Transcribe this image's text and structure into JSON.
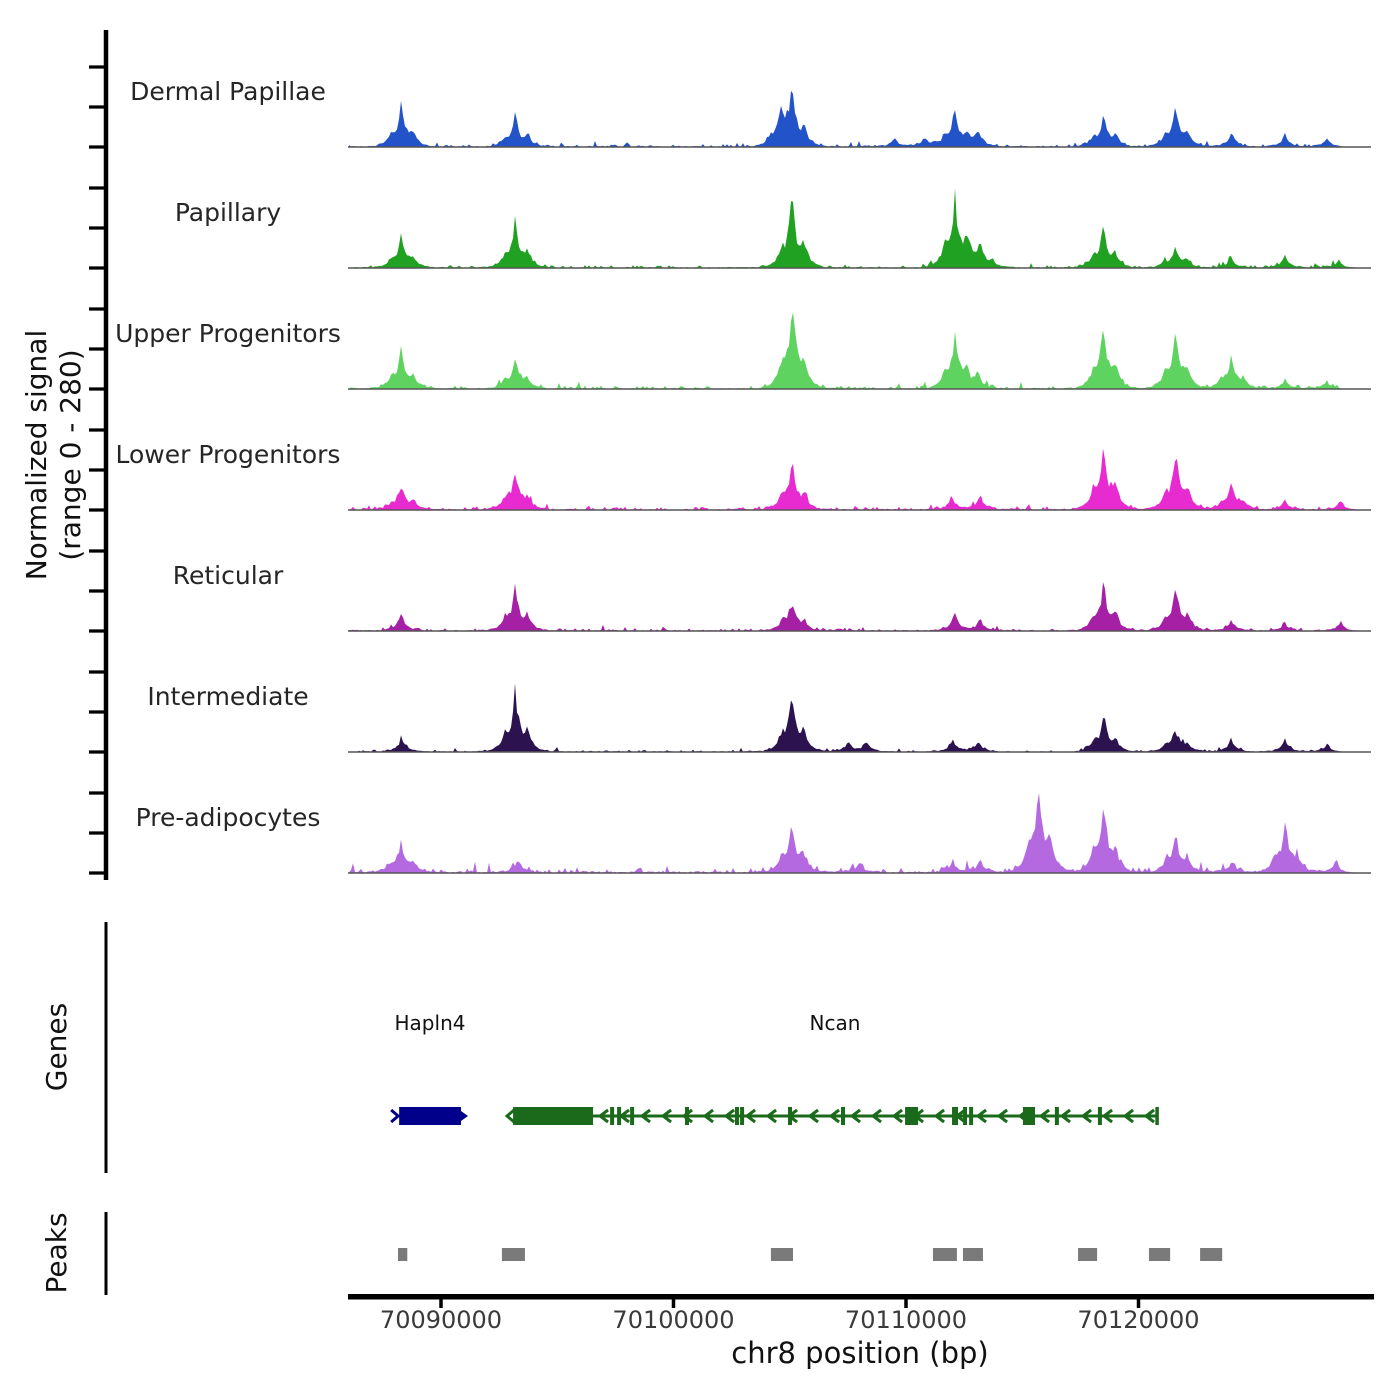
{
  "figure": {
    "ylabel_line1": "Normalized signal",
    "ylabel_line2": "(range 0 - 280)",
    "genes_section_label": "Genes",
    "peaks_section_label": "Peaks",
    "xlabel": "chr8 position (bp)"
  },
  "chart_data": {
    "type": "area",
    "title": "",
    "x_axis": {
      "label": "chr8 position (bp)",
      "chromosome": "chr8",
      "unit": "bp",
      "xlim": [
        70086000,
        70130000
      ],
      "ticks": [
        70090000,
        70100000,
        70110000,
        70120000
      ],
      "tick_labels": [
        "70090000",
        "70100000",
        "70110000",
        "70120000"
      ]
    },
    "y_axis": {
      "label": "Normalized signal (range 0 - 280)",
      "range_per_track": [
        0,
        280
      ],
      "ticks_per_track": [
        0,
        140,
        280
      ]
    },
    "legend_position": "left-track-labels",
    "grid": false,
    "tracks": [
      {
        "label": "Dermal Papillae",
        "color": "#2353C8",
        "noise": 6,
        "peaks": [
          [
            70088300,
            125
          ],
          [
            70093200,
            88
          ],
          [
            70104600,
            85
          ],
          [
            70105100,
            155
          ],
          [
            70109500,
            28
          ],
          [
            70110800,
            30
          ],
          [
            70112100,
            112
          ],
          [
            70113100,
            50
          ],
          [
            70118500,
            95
          ],
          [
            70121600,
            125
          ],
          [
            70124000,
            45
          ],
          [
            70126300,
            38
          ],
          [
            70128100,
            28
          ]
        ]
      },
      {
        "label": "Papillary",
        "color": "#21A121",
        "noise": 6,
        "peaks": [
          [
            70088300,
            95
          ],
          [
            70093200,
            147
          ],
          [
            70105100,
            210
          ],
          [
            70112100,
            220
          ],
          [
            70113200,
            70
          ],
          [
            70118500,
            123
          ],
          [
            70121600,
            66
          ],
          [
            70124000,
            32
          ],
          [
            70126300,
            40
          ],
          [
            70128600,
            25
          ]
        ]
      },
      {
        "label": "Upper Progenitors",
        "color": "#5FD35F",
        "noise": 7,
        "peaks": [
          [
            70088300,
            120
          ],
          [
            70093200,
            96
          ],
          [
            70105100,
            278
          ],
          [
            70112100,
            160
          ],
          [
            70113100,
            45
          ],
          [
            70118500,
            196
          ],
          [
            70121600,
            175
          ],
          [
            70124000,
            96
          ],
          [
            70126300,
            30
          ],
          [
            70128100,
            22
          ]
        ]
      },
      {
        "label": "Lower Progenitors",
        "color": "#E82BD0",
        "noise": 7,
        "peaks": [
          [
            70088300,
            75
          ],
          [
            70093200,
            125
          ],
          [
            70105100,
            143
          ],
          [
            70112000,
            38
          ],
          [
            70113200,
            42
          ],
          [
            70118500,
            210
          ],
          [
            70121600,
            175
          ],
          [
            70124000,
            78
          ],
          [
            70126300,
            28
          ],
          [
            70128700,
            30
          ]
        ]
      },
      {
        "label": "Reticular",
        "color": "#A520A5",
        "noise": 6,
        "peaks": [
          [
            70088300,
            55
          ],
          [
            70093200,
            133
          ],
          [
            70105100,
            93
          ],
          [
            70112100,
            52
          ],
          [
            70113200,
            35
          ],
          [
            70118500,
            140
          ],
          [
            70121600,
            133
          ],
          [
            70124000,
            32
          ],
          [
            70126300,
            25
          ],
          [
            70128700,
            28
          ]
        ]
      },
      {
        "label": "Intermediate",
        "color": "#2D1250",
        "noise": 5,
        "peaks": [
          [
            70088300,
            45
          ],
          [
            70093200,
            185
          ],
          [
            70105100,
            180
          ],
          [
            70107500,
            30
          ],
          [
            70108300,
            35
          ],
          [
            70112000,
            38
          ],
          [
            70113100,
            32
          ],
          [
            70118500,
            112
          ],
          [
            70121600,
            70
          ],
          [
            70124000,
            42
          ],
          [
            70126300,
            38
          ],
          [
            70128100,
            22
          ]
        ]
      },
      {
        "label": "Pre-adipocytes",
        "color": "#B469E0",
        "noise": 11,
        "peaks": [
          [
            70088300,
            90
          ],
          [
            70093300,
            42
          ],
          [
            70105100,
            160
          ],
          [
            70108000,
            30
          ],
          [
            70112000,
            40
          ],
          [
            70113200,
            38
          ],
          [
            70115700,
            278
          ],
          [
            70118500,
            215
          ],
          [
            70121600,
            115
          ],
          [
            70124000,
            35
          ],
          [
            70126300,
            160
          ],
          [
            70128500,
            35
          ]
        ]
      }
    ],
    "genes": [
      {
        "name": "Hapln4",
        "strand": "+",
        "color": "#00008B",
        "start": 70088200,
        "end": 70090860
      },
      {
        "name": "Ncan",
        "strand": "-",
        "color": "#1B691B",
        "start": 70093100,
        "end": 70120800,
        "big_exon": [
          70093100,
          70096540
        ],
        "exon_boxes": [
          [
            70109960,
            70110520
          ],
          [
            70111980,
            70112240
          ],
          [
            70115030,
            70115550
          ]
        ],
        "exon_ticks": [
          70097360,
          70097660,
          70098220,
          70100580,
          70102730,
          70102950,
          70105010,
          70107290,
          70112540,
          70112800,
          70116490,
          70118340
        ]
      }
    ],
    "called_peaks": {
      "color": "#7A7A7A",
      "intervals": [
        [
          70088150,
          70088550
        ],
        [
          70092620,
          70093610
        ],
        [
          70104190,
          70105140
        ],
        [
          70111160,
          70112190
        ],
        [
          70112450,
          70113310
        ],
        [
          70117400,
          70118220
        ],
        [
          70120450,
          70121360
        ],
        [
          70122650,
          70123600
        ]
      ]
    }
  }
}
